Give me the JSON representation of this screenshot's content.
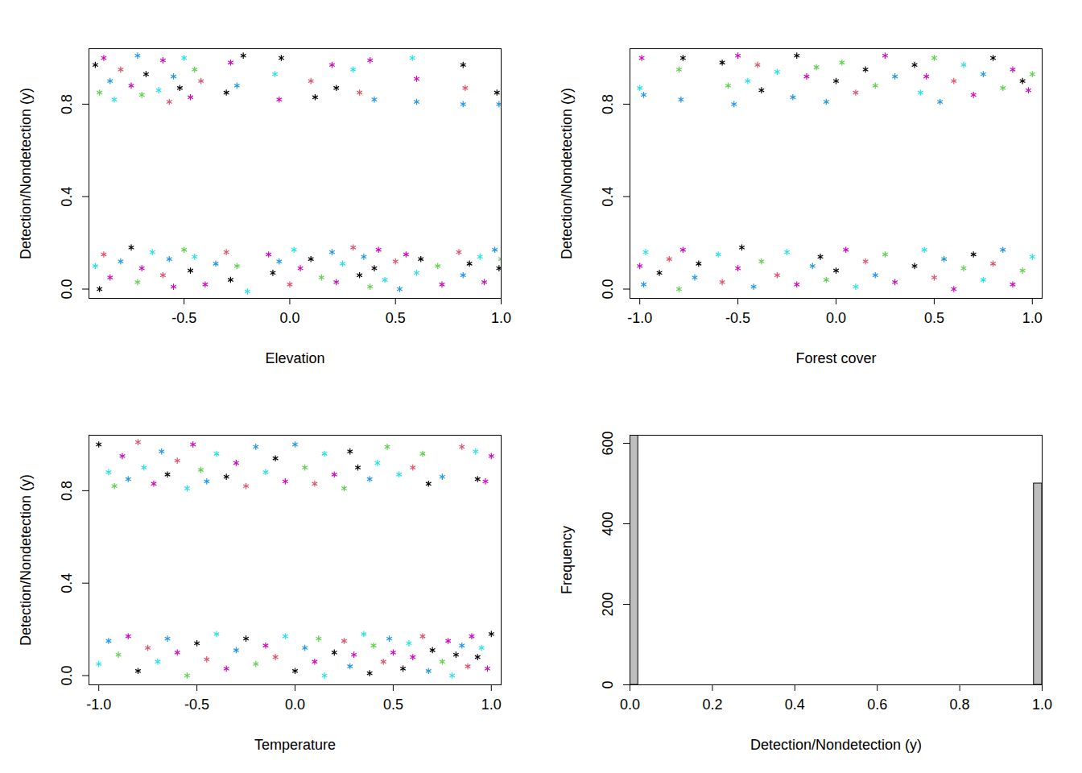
{
  "chart_data": [
    {
      "type": "scatter",
      "xlabel": "Elevation",
      "ylabel": "Detection/Nondetection (y)",
      "marker": "asterisk",
      "xlim": [
        -0.95,
        1.0
      ],
      "ylim": [
        -0.04,
        1.04
      ],
      "xticks": [
        -0.5,
        {
          "value": 0,
          "label": "0.0"
        },
        0.5,
        {
          "value": 1,
          "label": "1.0"
        }
      ],
      "yticks": [
        {
          "value": 0,
          "label": "0.0"
        },
        0.4,
        0.8
      ],
      "x": [
        -0.92,
        -0.9,
        -0.88,
        -0.85,
        -0.83,
        -0.8,
        -0.75,
        -0.72,
        -0.7,
        -0.68,
        -0.62,
        -0.6,
        -0.57,
        -0.55,
        -0.52,
        -0.5,
        -0.47,
        -0.45,
        -0.42,
        -0.3,
        -0.28,
        -0.25,
        -0.22,
        -0.07,
        -0.05,
        -0.04,
        0.1,
        0.12,
        0.2,
        0.22,
        0.3,
        0.33,
        0.38,
        0.4,
        0.58,
        0.6,
        0.6,
        0.82,
        0.83,
        0.82,
        0.98,
        0.99,
        -0.92,
        -0.9,
        -0.88,
        -0.85,
        -0.8,
        -0.75,
        -0.72,
        -0.7,
        -0.65,
        -0.6,
        -0.57,
        -0.55,
        -0.5,
        -0.47,
        -0.45,
        -0.4,
        -0.35,
        -0.3,
        -0.28,
        -0.25,
        -0.2,
        -0.1,
        -0.08,
        -0.05,
        0.0,
        0.02,
        0.05,
        0.1,
        0.15,
        0.2,
        0.22,
        0.25,
        0.3,
        0.33,
        0.35,
        0.38,
        0.4,
        0.42,
        0.45,
        0.5,
        0.52,
        0.55,
        0.6,
        0.62,
        0.7,
        0.72,
        0.8,
        0.82,
        0.85,
        0.9,
        0.92,
        0.97,
        0.99,
        1.0
      ],
      "values": [
        0.97,
        0.85,
        1.0,
        0.9,
        0.82,
        0.95,
        0.88,
        1.01,
        0.84,
        0.93,
        0.86,
        0.99,
        0.81,
        0.92,
        0.87,
        1.0,
        0.83,
        0.95,
        0.9,
        0.85,
        0.98,
        0.88,
        1.01,
        0.93,
        0.82,
        1.0,
        0.9,
        0.83,
        0.97,
        0.87,
        0.95,
        0.85,
        0.99,
        0.82,
        1.0,
        0.91,
        0.81,
        0.97,
        0.87,
        0.8,
        0.85,
        0.8,
        0.1,
        0.0,
        0.15,
        0.05,
        0.12,
        0.18,
        0.03,
        0.09,
        0.16,
        0.06,
        0.13,
        0.01,
        0.17,
        0.08,
        0.14,
        0.02,
        0.11,
        0.16,
        0.04,
        0.1,
        -0.01,
        0.15,
        0.07,
        0.12,
        0.02,
        0.17,
        0.09,
        0.13,
        0.05,
        0.16,
        0.03,
        0.11,
        0.18,
        0.06,
        0.14,
        0.01,
        0.09,
        0.17,
        0.04,
        0.12,
        0.0,
        0.15,
        0.07,
        0.13,
        0.1,
        0.02,
        0.16,
        0.06,
        0.11,
        0.14,
        0.03,
        0.17,
        0.09,
        0.13
      ],
      "colors": [
        "#000000",
        "#61D04F",
        "#CD0BBC",
        "#2297E6",
        "#28E2E5",
        "#DF536B",
        "#CD0BBC",
        "#2297E6",
        "#61D04F",
        "#000000",
        "#28E2E5",
        "#CD0BBC",
        "#DF536B",
        "#2297E6",
        "#000000",
        "#28E2E5",
        "#CD0BBC",
        "#61D04F",
        "#DF536B",
        "#000000",
        "#CD0BBC",
        "#2297E6",
        "#000000",
        "#28E2E5",
        "#CD0BBC",
        "#000000",
        "#DF536B",
        "#000000",
        "#CD0BBC",
        "#000000",
        "#28E2E5",
        "#DF536B",
        "#CD0BBC",
        "#2297E6",
        "#28E2E5",
        "#CD0BBC",
        "#2297E6",
        "#000000",
        "#DF536B",
        "#2297E6",
        "#000000",
        "#2297E6",
        "#28E2E5",
        "#000000",
        "#DF536B",
        "#CD0BBC",
        "#2297E6",
        "#000000",
        "#61D04F",
        "#CD0BBC",
        "#28E2E5",
        "#DF536B",
        "#2297E6",
        "#CD0BBC",
        "#61D04F",
        "#000000",
        "#28E2E5",
        "#CD0BBC",
        "#2297E6",
        "#DF536B",
        "#000000",
        "#61D04F",
        "#28E2E5",
        "#CD0BBC",
        "#000000",
        "#2297E6",
        "#DF536B",
        "#28E2E5",
        "#CD0BBC",
        "#000000",
        "#61D04F",
        "#2297E6",
        "#CD0BBC",
        "#28E2E5",
        "#DF536B",
        "#000000",
        "#2297E6",
        "#61D04F",
        "#000000",
        "#CD0BBC",
        "#28E2E5",
        "#DF536B",
        "#2297E6",
        "#CD0BBC",
        "#28E2E5",
        "#000000",
        "#61D04F",
        "#CD0BBC",
        "#DF536B",
        "#2297E6",
        "#000000",
        "#28E2E5",
        "#CD0BBC",
        "#2297E6",
        "#000000",
        "#61D04F"
      ]
    },
    {
      "type": "scatter",
      "xlabel": "Forest cover",
      "ylabel": "Detection/Nondetection (y)",
      "marker": "asterisk",
      "xlim": [
        -1.05,
        1.05
      ],
      "ylim": [
        -0.04,
        1.04
      ],
      "xticks": [
        {
          "value": -1,
          "label": "-1.0"
        },
        -0.5,
        {
          "value": 0,
          "label": "0.0"
        },
        0.5,
        {
          "value": 1,
          "label": "1.0"
        }
      ],
      "yticks": [
        {
          "value": 0,
          "label": "0.0"
        },
        0.4,
        0.8
      ],
      "x": [
        -1.0,
        -0.99,
        -0.98,
        -0.8,
        -0.79,
        -0.78,
        -0.58,
        -0.55,
        -0.52,
        -0.5,
        -0.45,
        -0.4,
        -0.38,
        -0.3,
        -0.22,
        -0.2,
        -0.15,
        -0.1,
        -0.05,
        0.0,
        0.03,
        0.1,
        0.15,
        0.2,
        0.25,
        0.3,
        0.4,
        0.43,
        0.46,
        0.5,
        0.53,
        0.6,
        0.65,
        0.7,
        0.75,
        0.8,
        0.85,
        0.9,
        0.95,
        0.98,
        1.0,
        -1.0,
        -0.98,
        -0.97,
        -0.9,
        -0.85,
        -0.8,
        -0.78,
        -0.72,
        -0.7,
        -0.6,
        -0.58,
        -0.5,
        -0.48,
        -0.42,
        -0.38,
        -0.3,
        -0.25,
        -0.2,
        -0.12,
        -0.08,
        -0.05,
        0.0,
        0.05,
        0.1,
        0.15,
        0.2,
        0.25,
        0.3,
        0.4,
        0.45,
        0.5,
        0.55,
        0.6,
        0.65,
        0.7,
        0.75,
        0.8,
        0.85,
        0.9,
        0.95,
        1.0
      ],
      "values": [
        0.87,
        1.0,
        0.84,
        0.95,
        0.82,
        1.0,
        0.98,
        0.88,
        0.8,
        1.01,
        0.9,
        0.97,
        0.86,
        0.94,
        0.83,
        1.01,
        0.92,
        0.96,
        0.81,
        0.9,
        0.98,
        0.85,
        0.95,
        0.88,
        1.01,
        0.92,
        0.97,
        0.85,
        0.92,
        1.0,
        0.81,
        0.9,
        0.97,
        0.84,
        0.93,
        1.0,
        0.87,
        0.95,
        0.9,
        0.86,
        0.93,
        0.1,
        0.02,
        0.16,
        0.07,
        0.13,
        0.0,
        0.17,
        0.05,
        0.11,
        0.15,
        0.03,
        0.09,
        0.18,
        0.01,
        0.12,
        0.06,
        0.16,
        0.02,
        0.1,
        0.14,
        0.04,
        0.08,
        0.17,
        0.01,
        0.12,
        0.06,
        0.15,
        0.03,
        0.1,
        0.17,
        0.05,
        0.13,
        0.0,
        0.09,
        0.15,
        0.04,
        0.11,
        0.17,
        0.02,
        0.08,
        0.14
      ],
      "colors": [
        "#28E2E5",
        "#CD0BBC",
        "#2297E6",
        "#61D04F",
        "#2297E6",
        "#000000",
        "#000000",
        "#61D04F",
        "#2297E6",
        "#CD0BBC",
        "#28E2E5",
        "#DF536B",
        "#000000",
        "#28E2E5",
        "#2297E6",
        "#000000",
        "#CD0BBC",
        "#61D04F",
        "#2297E6",
        "#000000",
        "#61D04F",
        "#DF536B",
        "#000000",
        "#61D04F",
        "#CD0BBC",
        "#2297E6",
        "#000000",
        "#28E2E5",
        "#CD0BBC",
        "#61D04F",
        "#2297E6",
        "#DF536B",
        "#28E2E5",
        "#CD0BBC",
        "#2297E6",
        "#000000",
        "#61D04F",
        "#CD0BBC",
        "#000000",
        "#CD0BBC",
        "#61D04F",
        "#CD0BBC",
        "#2297E6",
        "#28E2E5",
        "#000000",
        "#DF536B",
        "#61D04F",
        "#CD0BBC",
        "#2297E6",
        "#000000",
        "#28E2E5",
        "#DF536B",
        "#CD0BBC",
        "#000000",
        "#2297E6",
        "#61D04F",
        "#DF536B",
        "#28E2E5",
        "#CD0BBC",
        "#2297E6",
        "#000000",
        "#61D04F",
        "#000000",
        "#CD0BBC",
        "#28E2E5",
        "#DF536B",
        "#2297E6",
        "#61D04F",
        "#CD0BBC",
        "#000000",
        "#28E2E5",
        "#DF536B",
        "#2297E6",
        "#CD0BBC",
        "#61D04F",
        "#000000",
        "#28E2E5",
        "#DF536B",
        "#2297E6",
        "#CD0BBC",
        "#61D04F",
        "#28E2E5"
      ]
    },
    {
      "type": "scatter",
      "xlabel": "Temperature",
      "ylabel": "Detection/Nondetection (y)",
      "marker": "asterisk",
      "xlim": [
        -1.05,
        1.05
      ],
      "ylim": [
        -0.04,
        1.04
      ],
      "xticks": [
        {
          "value": -1,
          "label": "-1.0"
        },
        -0.5,
        {
          "value": 0,
          "label": "0.0"
        },
        0.5,
        {
          "value": 1,
          "label": "1.0"
        }
      ],
      "yticks": [
        {
          "value": 0,
          "label": "0.0"
        },
        0.4,
        0.8
      ],
      "x": [
        -1.0,
        -0.95,
        -0.92,
        -0.88,
        -0.85,
        -0.8,
        -0.77,
        -0.72,
        -0.68,
        -0.65,
        -0.6,
        -0.55,
        -0.52,
        -0.48,
        -0.45,
        -0.4,
        -0.35,
        -0.3,
        -0.25,
        -0.2,
        -0.15,
        -0.1,
        -0.05,
        0.0,
        0.05,
        0.1,
        0.15,
        0.2,
        0.25,
        0.28,
        0.32,
        0.38,
        0.42,
        0.47,
        0.53,
        0.6,
        0.65,
        0.68,
        0.75,
        0.85,
        0.92,
        0.93,
        0.97,
        1.0,
        -1.0,
        -0.95,
        -0.9,
        -0.85,
        -0.8,
        -0.75,
        -0.7,
        -0.65,
        -0.6,
        -0.55,
        -0.5,
        -0.45,
        -0.4,
        -0.35,
        -0.3,
        -0.25,
        -0.2,
        -0.15,
        -0.1,
        -0.05,
        0.0,
        0.05,
        0.1,
        0.12,
        0.15,
        0.2,
        0.25,
        0.28,
        0.3,
        0.35,
        0.38,
        0.4,
        0.45,
        0.48,
        0.5,
        0.55,
        0.58,
        0.6,
        0.65,
        0.68,
        0.7,
        0.75,
        0.78,
        0.8,
        0.82,
        0.85,
        0.88,
        0.9,
        0.93,
        0.95,
        0.98,
        1.0
      ],
      "values": [
        1.0,
        0.88,
        0.82,
        0.95,
        0.85,
        1.01,
        0.9,
        0.83,
        0.97,
        0.87,
        0.93,
        0.81,
        1.0,
        0.89,
        0.84,
        0.96,
        0.86,
        0.92,
        0.82,
        0.99,
        0.88,
        0.94,
        0.84,
        1.0,
        0.9,
        0.83,
        0.96,
        0.87,
        0.81,
        0.97,
        0.9,
        0.85,
        0.92,
        0.99,
        0.87,
        0.9,
        0.96,
        0.83,
        0.86,
        0.99,
        0.97,
        0.85,
        0.84,
        0.95,
        0.05,
        0.15,
        0.09,
        0.17,
        0.02,
        0.12,
        0.06,
        0.16,
        0.1,
        0.0,
        0.14,
        0.07,
        0.18,
        0.03,
        0.11,
        0.16,
        0.05,
        0.13,
        0.08,
        0.17,
        0.02,
        0.12,
        0.06,
        0.16,
        0.0,
        0.1,
        0.15,
        0.04,
        0.09,
        0.18,
        0.01,
        0.13,
        0.06,
        0.16,
        0.1,
        0.03,
        0.14,
        0.08,
        0.17,
        0.02,
        0.11,
        0.06,
        0.15,
        0.0,
        0.09,
        0.13,
        0.04,
        0.17,
        0.08,
        0.12,
        0.03,
        0.18
      ],
      "colors": [
        "#000000",
        "#28E2E5",
        "#61D04F",
        "#CD0BBC",
        "#2297E6",
        "#DF536B",
        "#28E2E5",
        "#CD0BBC",
        "#2297E6",
        "#000000",
        "#DF536B",
        "#28E2E5",
        "#CD0BBC",
        "#61D04F",
        "#2297E6",
        "#28E2E5",
        "#000000",
        "#CD0BBC",
        "#DF536B",
        "#2297E6",
        "#28E2E5",
        "#000000",
        "#CD0BBC",
        "#2297E6",
        "#61D04F",
        "#DF536B",
        "#28E2E5",
        "#CD0BBC",
        "#61D04F",
        "#000000",
        "#000000",
        "#2297E6",
        "#28E2E5",
        "#61D04F",
        "#28E2E5",
        "#DF536B",
        "#61D04F",
        "#000000",
        "#2297E6",
        "#DF536B",
        "#28E2E5",
        "#000000",
        "#CD0BBC",
        "#CD0BBC",
        "#28E2E5",
        "#2297E6",
        "#61D04F",
        "#CD0BBC",
        "#000000",
        "#DF536B",
        "#28E2E5",
        "#2297E6",
        "#CD0BBC",
        "#61D04F",
        "#000000",
        "#DF536B",
        "#28E2E5",
        "#CD0BBC",
        "#2297E6",
        "#000000",
        "#61D04F",
        "#CD0BBC",
        "#DF536B",
        "#28E2E5",
        "#000000",
        "#2297E6",
        "#CD0BBC",
        "#61D04F",
        "#28E2E5",
        "#000000",
        "#DF536B",
        "#2297E6",
        "#CD0BBC",
        "#28E2E5",
        "#000000",
        "#61D04F",
        "#DF536B",
        "#2297E6",
        "#CD0BBC",
        "#000000",
        "#28E2E5",
        "#CD0BBC",
        "#DF536B",
        "#2297E6",
        "#000000",
        "#61D04F",
        "#CD0BBC",
        "#28E2E5",
        "#000000",
        "#2297E6",
        "#DF536B",
        "#CD0BBC",
        "#000000",
        "#28E2E5",
        "#CD0BBC",
        "#000000"
      ]
    },
    {
      "type": "histogram",
      "xlabel": "Detection/Nondetection (y)",
      "ylabel": "Frequency",
      "color": "#bebebe",
      "xlim": [
        0,
        1
      ],
      "ylim": [
        0,
        620
      ],
      "xticks": [
        {
          "value": 0,
          "label": "0.0"
        },
        0.2,
        0.4,
        0.6,
        0.8,
        {
          "value": 1,
          "label": "1.0"
        }
      ],
      "yticks": [
        0,
        200,
        400,
        600
      ],
      "bins": [
        0,
        0.02,
        0.04,
        0.06,
        0.08,
        0.1,
        0.12,
        0.14,
        0.16,
        0.18,
        0.2,
        0.22,
        0.24,
        0.26,
        0.28,
        0.3,
        0.32,
        0.34,
        0.36,
        0.38,
        0.4,
        0.42,
        0.44,
        0.46,
        0.48,
        0.5,
        0.52,
        0.54,
        0.56,
        0.58,
        0.6,
        0.62,
        0.64,
        0.66,
        0.68,
        0.7,
        0.72,
        0.74,
        0.76,
        0.78,
        0.8,
        0.82,
        0.84,
        0.86,
        0.88,
        0.9,
        0.92,
        0.94,
        0.96,
        0.98,
        1
      ],
      "counts": [
        620,
        0,
        0,
        0,
        0,
        0,
        0,
        0,
        0,
        0,
        0,
        0,
        0,
        0,
        0,
        0,
        0,
        0,
        0,
        0,
        0,
        0,
        0,
        0,
        0,
        0,
        0,
        0,
        0,
        0,
        0,
        0,
        0,
        0,
        0,
        0,
        0,
        0,
        0,
        0,
        0,
        0,
        0,
        0,
        0,
        0,
        0,
        0,
        0,
        500
      ]
    }
  ]
}
